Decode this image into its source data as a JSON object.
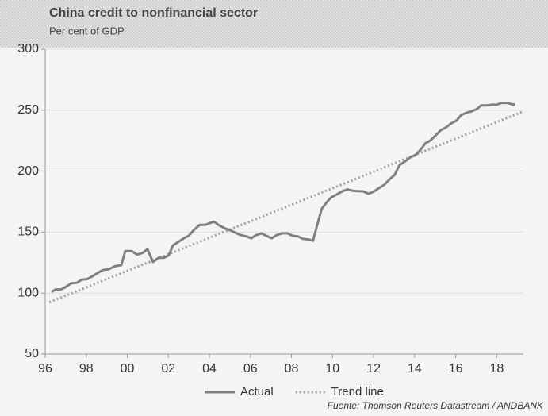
{
  "chart_data": {
    "type": "line",
    "title": "China credit to nonfinancial sector",
    "subtitle": "Per cent of GDP",
    "source": "Fuente: Thomson Reuters Datastream / ANDBANK",
    "xlim": [
      1996,
      2019.3
    ],
    "xticks": [
      {
        "value": 1996,
        "label": "96"
      },
      {
        "value": 1998,
        "label": "98"
      },
      {
        "value": 2000,
        "label": "00"
      },
      {
        "value": 2002,
        "label": "02"
      },
      {
        "value": 2004,
        "label": "04"
      },
      {
        "value": 2006,
        "label": "06"
      },
      {
        "value": 2008,
        "label": "08"
      },
      {
        "value": 2010,
        "label": "10"
      },
      {
        "value": 2012,
        "label": "12"
      },
      {
        "value": 2014,
        "label": "14"
      },
      {
        "value": 2016,
        "label": "16"
      },
      {
        "value": 2018,
        "label": "18"
      }
    ],
    "ylim": [
      50,
      300
    ],
    "yticks": [
      50,
      100,
      150,
      200,
      250,
      300
    ],
    "grid": true,
    "legend": "bottom",
    "series": [
      {
        "name": "Actual",
        "color": "#808080",
        "style": "solid",
        "x": [
          1996.31,
          1996.5,
          1996.77,
          1997.0,
          1997.27,
          1997.54,
          1997.78,
          1998.05,
          1998.32,
          1998.55,
          1998.82,
          1999.09,
          1999.4,
          1999.71,
          1999.9,
          2000.21,
          2000.48,
          2000.75,
          2000.98,
          2001.25,
          2001.52,
          2001.79,
          2002.02,
          2002.22,
          2002.53,
          2002.76,
          2002.99,
          2003.26,
          2003.53,
          2003.8,
          2004.03,
          2004.22,
          2004.49,
          2004.76,
          2005.03,
          2005.27,
          2005.54,
          2005.81,
          2006.04,
          2006.27,
          2006.54,
          2006.77,
          2007.04,
          2007.27,
          2007.54,
          2007.81,
          2008.05,
          2008.32,
          2008.55,
          2008.82,
          2009.05,
          2009.24,
          2009.47,
          2009.71,
          2009.94,
          2010.21,
          2010.48,
          2010.71,
          2010.98,
          2011.25,
          2011.48,
          2011.75,
          2011.98,
          2012.25,
          2012.53,
          2012.76,
          2013.03,
          2013.26,
          2013.53,
          2013.8,
          2014.03,
          2014.26,
          2014.53,
          2014.76,
          2015.03,
          2015.27,
          2015.54,
          2015.77,
          2016.04,
          2016.27,
          2016.54,
          2016.77,
          2017.04,
          2017.24,
          2017.51,
          2017.78,
          2018.01,
          2018.24,
          2018.51,
          2018.7,
          2018.89
        ],
        "values": [
          101,
          103,
          103,
          105,
          108,
          108.5,
          111,
          111.5,
          114,
          116.5,
          119,
          119.5,
          122,
          123,
          134.5,
          134.5,
          131.5,
          133,
          136,
          125.5,
          129,
          129,
          131,
          139,
          142.5,
          145,
          147,
          152,
          156,
          156,
          157.5,
          158.6,
          155.5,
          153,
          151.5,
          149.5,
          147.5,
          146.5,
          145,
          147.5,
          149,
          147,
          145,
          147.5,
          149,
          149,
          147,
          146.5,
          144.5,
          144,
          143,
          155,
          169,
          174.5,
          178.5,
          181,
          183.5,
          185,
          184,
          183.5,
          183.5,
          181.5,
          183,
          186,
          189,
          193,
          197,
          205,
          208,
          211.5,
          213,
          217,
          223,
          225,
          229.5,
          233.5,
          236,
          239,
          241.5,
          246,
          248,
          249,
          251,
          254,
          254,
          254.5,
          254.5,
          256,
          256,
          255,
          254.5
        ]
      },
      {
        "name": "Trend line",
        "color": "#a0a0a0",
        "style": "dotted",
        "x": [
          1996.2,
          2019.3
        ],
        "values": [
          92.5,
          249
        ]
      }
    ]
  }
}
